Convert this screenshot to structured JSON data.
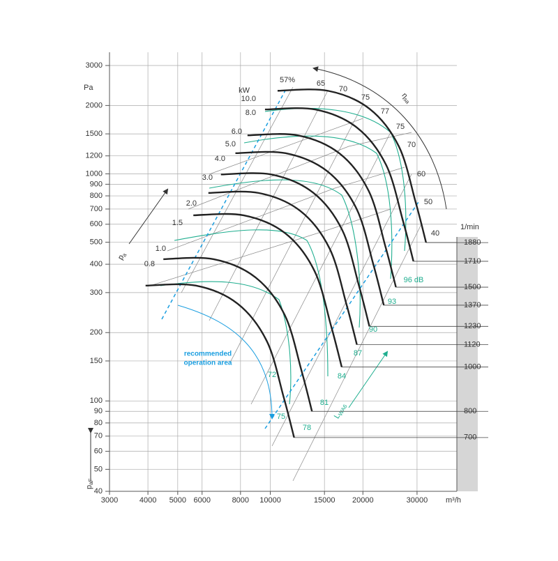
{
  "chart_data": {
    "type": "fan_curve",
    "y_label": "Pa",
    "y_label_bottom": "p",
    "y_label_bottom_sub": "aF",
    "x_label": "m³/h",
    "speed_label": "1/min",
    "log_x": true,
    "log_y": true,
    "xlim": [
      3000,
      40000
    ],
    "ylim": [
      40,
      3000
    ],
    "xticks": [
      3000,
      4000,
      5000,
      6000,
      8000,
      10000,
      15000,
      20000,
      30000
    ],
    "yticks": [
      40,
      50,
      60,
      70,
      80,
      90,
      100,
      150,
      200,
      300,
      400,
      500,
      600,
      700,
      800,
      900,
      1000,
      1200,
      1500,
      2000,
      3000
    ],
    "grid": true,
    "series": [
      {
        "name": "700",
        "color": "#222222",
        "x": [
          3930,
          5730,
          7830,
          9750,
          11050,
          11950
        ],
        "values": [
          322,
          322,
          268,
          183,
          104,
          69
        ]
      },
      {
        "name": "800",
        "color": "#222222",
        "x": [
          4490,
          6540,
          8950,
          11140,
          12630,
          13660
        ],
        "values": [
          421,
          421,
          350,
          239,
          136,
          90
        ]
      },
      {
        "name": "1000",
        "color": "#222222",
        "x": [
          5620,
          8180,
          11190,
          13930,
          15790,
          17070
        ],
        "values": [
          657,
          657,
          547,
          373,
          212,
          141
        ]
      },
      {
        "name": "1120",
        "color": "#222222",
        "x": [
          6290,
          9160,
          12530,
          15600,
          17690,
          19120
        ],
        "values": [
          824,
          824,
          686,
          468,
          266,
          177
        ]
      },
      {
        "name": "1230",
        "color": "#222222",
        "x": [
          6910,
          10060,
          13770,
          17140,
          19430,
          21000
        ],
        "values": [
          994,
          994,
          827,
          565,
          321,
          213
        ]
      },
      {
        "name": "1370",
        "color": "#222222",
        "x": [
          7700,
          11210,
          15330,
          19080,
          21640,
          23390
        ],
        "values": [
          1233,
          1233,
          1026,
          701,
          398,
          264
        ]
      },
      {
        "name": "1500",
        "color": "#222222",
        "x": [
          8430,
          12270,
          16790,
          20900,
          23690,
          25610
        ],
        "values": [
          1478,
          1478,
          1230,
          840,
          477,
          317
        ]
      },
      {
        "name": "1710",
        "color": "#222222",
        "x": [
          9610,
          13990,
          19140,
          23820,
          27010,
          29200
        ],
        "values": [
          1921,
          1921,
          1598,
          1092,
          620,
          412
        ]
      },
      {
        "name": "1880",
        "color": "#222222",
        "x": [
          10560,
          15380,
          21040,
          26190,
          29690,
          32100
        ],
        "values": [
          2322,
          2322,
          1932,
          1320,
          750,
          498
        ]
      }
    ],
    "kw_labels": [
      "kW",
      "10.0",
      "8.0",
      "6.0",
      "5.0",
      "4.0",
      "3.0",
      "2.0",
      "1.5",
      "1.0",
      "0.8"
    ],
    "efficiency_labels": [
      "57%",
      "65",
      "70",
      "75",
      "77",
      "75",
      "70",
      "60",
      "50",
      "40"
    ],
    "db_labels": [
      "96 dB",
      "93",
      "90",
      "87",
      "84",
      "81",
      "78",
      "72",
      "75"
    ],
    "annotations": {
      "eta": "η",
      "eta_sub": "sa",
      "recommended": "recommended",
      "recommended2": "operation area",
      "lwa": "L",
      "lwa_sub": "WA6",
      "pa": "p",
      "pa_sub": "a"
    }
  }
}
